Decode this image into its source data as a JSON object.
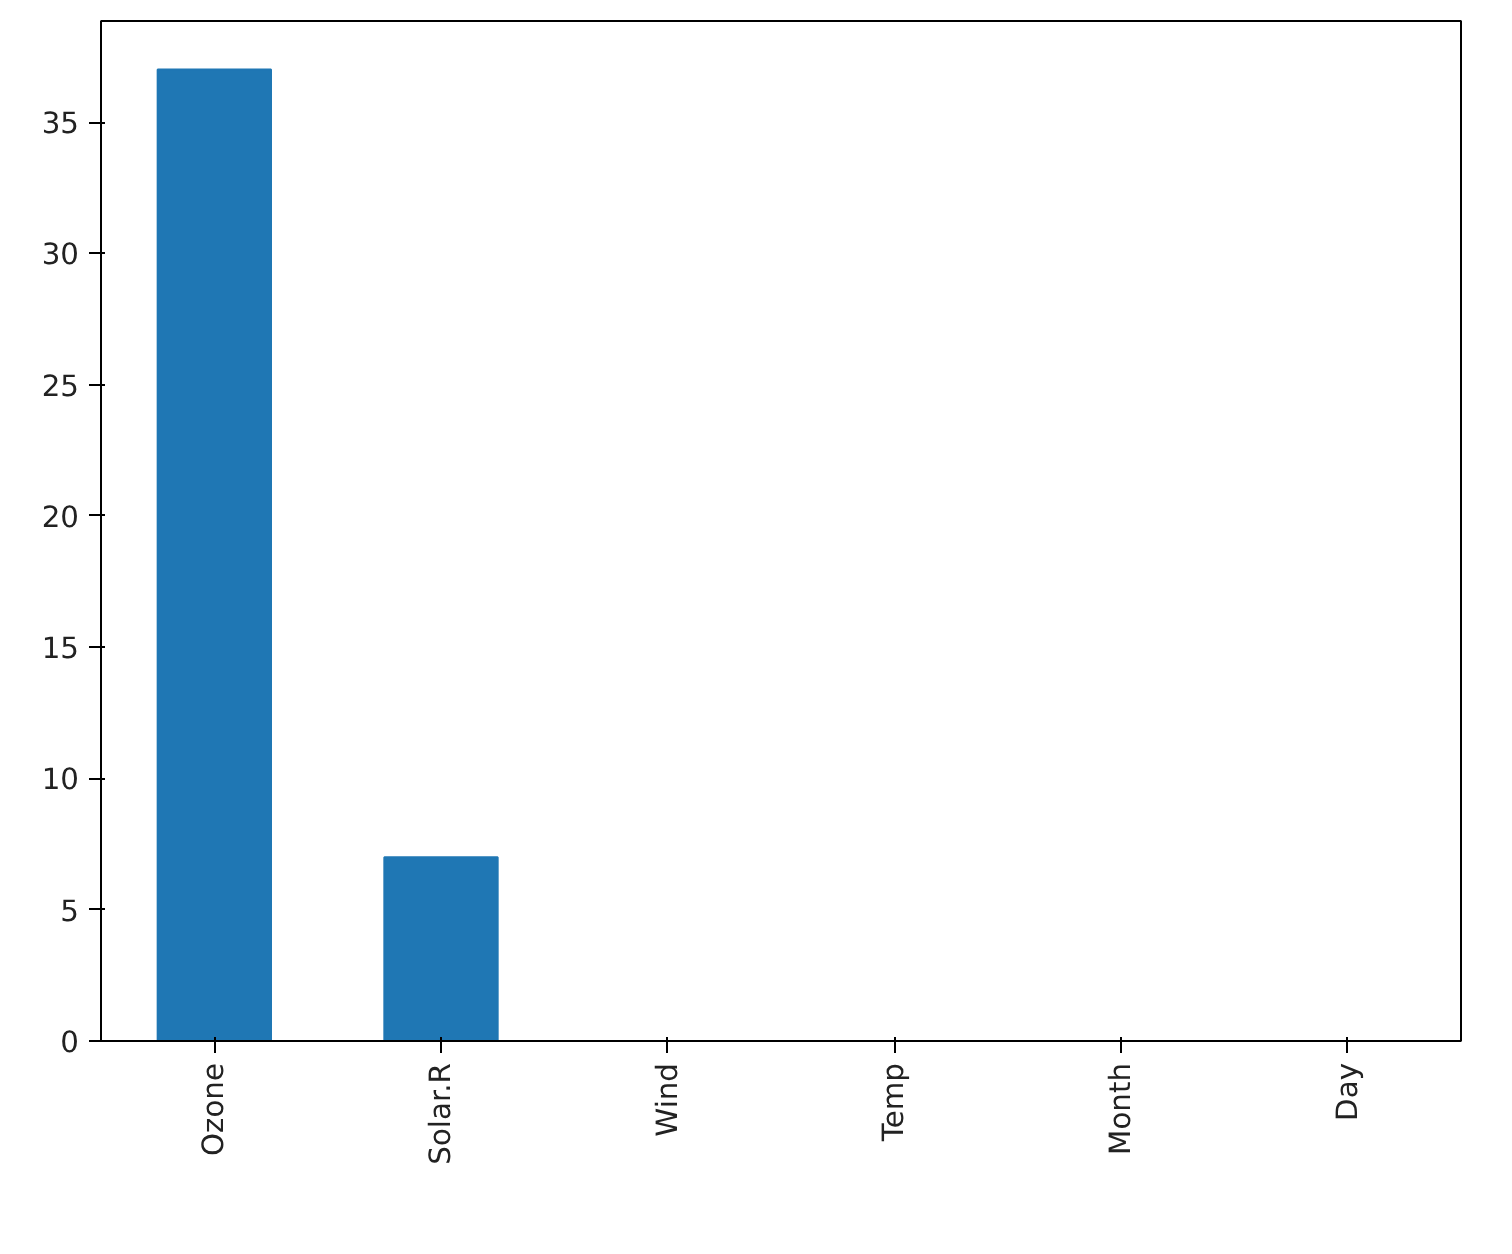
{
  "chart_data": {
    "type": "bar",
    "categories": [
      "Ozone",
      "Solar.R",
      "Wind",
      "Temp",
      "Month",
      "Day"
    ],
    "values": [
      37,
      7,
      0,
      0,
      0,
      0
    ],
    "color": "#1f77b4",
    "ylim": [
      0,
      38.85
    ],
    "yticks": [
      0,
      5,
      10,
      15,
      20,
      25,
      30,
      35
    ],
    "grid": false
  }
}
